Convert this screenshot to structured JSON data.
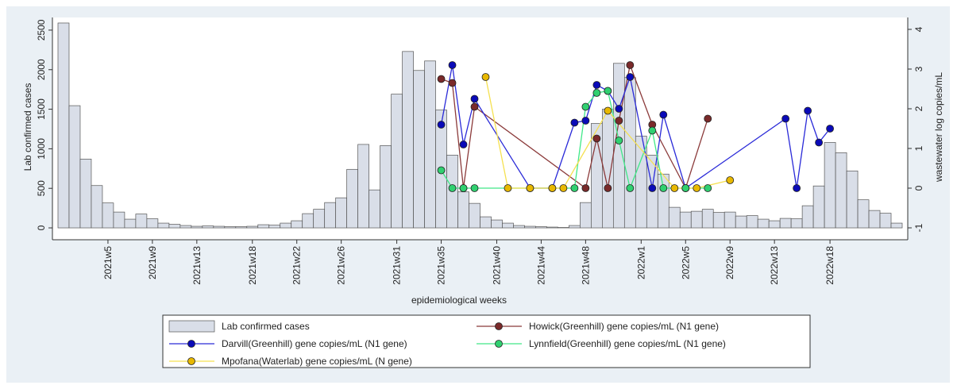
{
  "chart_data": {
    "type": "bar",
    "x_label": "epidemiological weeks",
    "y_label": "Lab confirmed cases",
    "y2_label": "wastewater log copies/mL",
    "xlim": [
      0,
      77
    ],
    "xticks": [
      {
        "value": 5,
        "label": "2021w5"
      },
      {
        "value": 9,
        "label": "2021w9"
      },
      {
        "value": 13,
        "label": "2021w13"
      },
      {
        "value": 18,
        "label": "2021w18"
      },
      {
        "value": 22,
        "label": "2021w22"
      },
      {
        "value": 26,
        "label": "2021w26"
      },
      {
        "value": 31,
        "label": "2021w31"
      },
      {
        "value": 35,
        "label": "2021w35"
      },
      {
        "value": 40,
        "label": "2021w40"
      },
      {
        "value": 44,
        "label": "2021w44"
      },
      {
        "value": 48,
        "label": "2021w48"
      },
      {
        "value": 53,
        "label": "2022w1"
      },
      {
        "value": 57,
        "label": "2022w5"
      },
      {
        "value": 61,
        "label": "2022w9"
      },
      {
        "value": 65,
        "label": "2022w13"
      },
      {
        "value": 70,
        "label": "2022w18"
      }
    ],
    "ylim": [
      -100,
      2660
    ],
    "yticks": [
      0,
      500,
      1000,
      1500,
      2000,
      2500
    ],
    "y2lim": [
      -1.2,
      4.3
    ],
    "y2ticks": [
      -1,
      0,
      1,
      2,
      3,
      4
    ],
    "series": [
      {
        "name": "Lab confirmed cases",
        "type": "bar",
        "color": "#d9dee8",
        "x": [
          1,
          2,
          3,
          4,
          5,
          6,
          7,
          8,
          9,
          10,
          11,
          12,
          13,
          14,
          15,
          16,
          17,
          18,
          19,
          20,
          21,
          22,
          23,
          24,
          25,
          26,
          27,
          28,
          29,
          30,
          31,
          32,
          33,
          34,
          35,
          36,
          37,
          38,
          39,
          40,
          41,
          42,
          43,
          44,
          45,
          46,
          47,
          48,
          49,
          50,
          51,
          52,
          53,
          54,
          55,
          56,
          57,
          58,
          59,
          60,
          61,
          62,
          63,
          64,
          65,
          66,
          67,
          68,
          69,
          70,
          71,
          72,
          73,
          74,
          75,
          76
        ],
        "values": [
          2590,
          1545,
          870,
          535,
          315,
          200,
          110,
          175,
          115,
          60,
          45,
          30,
          20,
          25,
          20,
          15,
          15,
          20,
          40,
          35,
          60,
          90,
          180,
          235,
          320,
          380,
          740,
          1055,
          480,
          1040,
          1690,
          2230,
          1990,
          2110,
          1490,
          920,
          455,
          310,
          140,
          100,
          60,
          30,
          20,
          15,
          10,
          5,
          30,
          320,
          1320,
          1500,
          2080,
          1900,
          1160,
          920,
          680,
          260,
          200,
          210,
          235,
          195,
          200,
          150,
          155,
          110,
          90,
          120,
          115,
          280,
          530,
          1080,
          950,
          720,
          355,
          220,
          185,
          60
        ]
      },
      {
        "name": "Howick(Greenhill) gene copies/mL (N1 gene)",
        "type": "line",
        "axis": "y2",
        "color": "#8b3a3a",
        "marker": "#7a2a2a",
        "x": [
          35,
          36,
          37,
          38,
          48,
          49,
          50,
          51,
          52,
          54,
          57,
          59
        ],
        "values": [
          2.75,
          2.65,
          0,
          2.05,
          0,
          1.25,
          0,
          1.7,
          3.1,
          1.6,
          0,
          1.75
        ]
      },
      {
        "name": "Darvill(Greenhill) gene copies/mL (N1 gene)",
        "type": "line",
        "axis": "y2",
        "color": "#2a2ad8",
        "marker": "#0a0ab8",
        "x": [
          35,
          36,
          37,
          38,
          43,
          45,
          47,
          48,
          49,
          50,
          51,
          52,
          54,
          55,
          57,
          66,
          67,
          68,
          69,
          70
        ],
        "values": [
          1.6,
          3.1,
          1.1,
          2.25,
          0,
          0,
          1.65,
          1.7,
          2.6,
          2.45,
          2.0,
          2.8,
          0,
          1.85,
          0,
          1.75,
          0,
          1.95,
          1.15,
          1.5
        ]
      },
      {
        "name": "Lynnfield(Greenhill) gene copies/mL (N1 gene)",
        "type": "line",
        "axis": "y2",
        "color": "#40e888",
        "marker": "#30d070",
        "x": [
          35,
          36,
          37,
          38,
          47,
          48,
          49,
          50,
          51,
          52,
          54,
          55,
          57,
          59
        ],
        "values": [
          0.45,
          0,
          0,
          0,
          0,
          2.05,
          2.4,
          2.45,
          1.2,
          0,
          1.45,
          0,
          0,
          0
        ]
      },
      {
        "name": "Mpofana(Waterlab) gene copies/mL (N gene)",
        "type": "line",
        "axis": "y2",
        "color": "#f5e050",
        "marker": "#e8b800",
        "x": [
          39,
          41,
          43,
          45,
          46,
          50,
          56,
          58,
          61
        ],
        "values": [
          2.8,
          0,
          0,
          0,
          0,
          1.95,
          0,
          0,
          0.2
        ]
      }
    ]
  }
}
